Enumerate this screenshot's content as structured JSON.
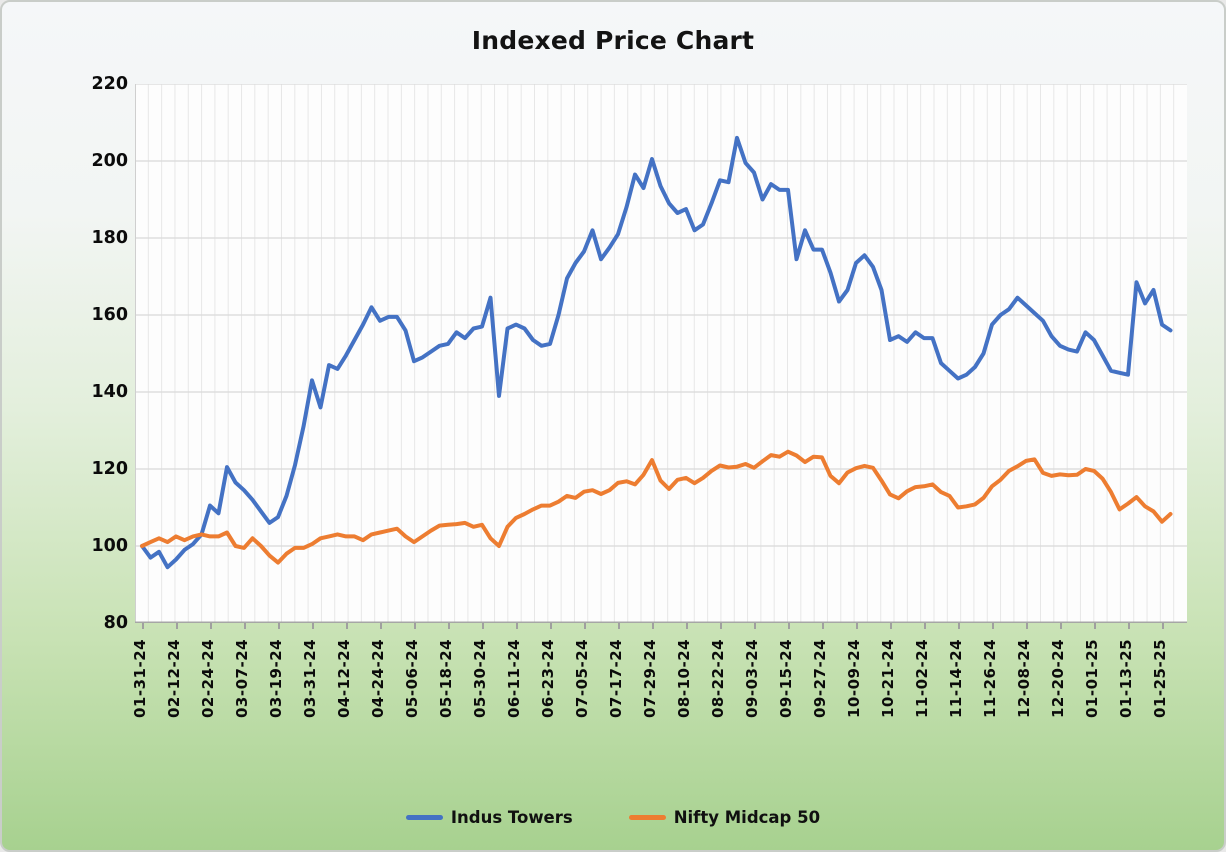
{
  "title": "Indexed Price Chart",
  "colors": {
    "series_blue": "#4472C4",
    "series_orange": "#ED7D31",
    "plot_background": "#fdfdfd",
    "h_gridline": "#d9d9d9",
    "v_gridline": "#e7e7e7",
    "axis_line": "#a6a6a6",
    "page_gradient_top": "#f5f7f9",
    "page_gradient_bottom": "#a7d18f"
  },
  "chart_data": {
    "type": "line",
    "title": "Indexed Price Chart",
    "xlabel": "",
    "ylabel": "",
    "ylim": [
      80,
      220
    ],
    "y_ticks": [
      80,
      100,
      120,
      140,
      160,
      180,
      200,
      220
    ],
    "grid": "both",
    "legend_position": "bottom",
    "x_tick_labels": [
      "01-31-24",
      "02-12-24",
      "02-24-24",
      "03-07-24",
      "03-19-24",
      "03-31-24",
      "04-12-24",
      "04-24-24",
      "05-06-24",
      "05-18-24",
      "05-30-24",
      "06-11-24",
      "06-23-24",
      "07-05-24",
      "07-17-24",
      "07-29-24",
      "08-10-24",
      "08-22-24",
      "09-03-24",
      "09-15-24",
      "09-27-24",
      "10-09-24",
      "10-21-24",
      "11-02-24",
      "11-14-24",
      "11-26-24",
      "12-08-24",
      "12-20-24",
      "01-01-25",
      "01-13-25",
      "01-25-25"
    ],
    "points_per_tick_interval": 4,
    "series": [
      {
        "name": "Indus Towers",
        "color": "#4472C4",
        "values": [
          100,
          97,
          98.5,
          94.5,
          96.5,
          99,
          100.5,
          103,
          110.5,
          108.5,
          120.5,
          116.5,
          114.5,
          112,
          109,
          106,
          107.5,
          113,
          121,
          131,
          143,
          136,
          147,
          146,
          149.5,
          153.5,
          157.5,
          162,
          158.5,
          159.5,
          159.5,
          156,
          148,
          149,
          150.5,
          152,
          152.5,
          155.5,
          154,
          156.5,
          157,
          164.5,
          139,
          156.5,
          157.5,
          156.5,
          153.5,
          152,
          152.5,
          160,
          169.5,
          173.5,
          176.5,
          182,
          174.5,
          177.5,
          181,
          188,
          196.5,
          193,
          200.5,
          193.5,
          189,
          186.5,
          187.5,
          182,
          183.5,
          189,
          195,
          194.5,
          206,
          199.5,
          197,
          190,
          194,
          192.5,
          192.5,
          174.5,
          182,
          177,
          177,
          171,
          163.5,
          166.5,
          173.5,
          175.5,
          172.5,
          166.5,
          153.5,
          154.5,
          153,
          155.5,
          154,
          154,
          147.5,
          145.5,
          143.5,
          144.5,
          146.5,
          150,
          157.5,
          160,
          161.5,
          164.5,
          162.5,
          160.5,
          158.5,
          154.5,
          152,
          151,
          150.5,
          155.5,
          153.5,
          149.5,
          145.5,
          145,
          144.5,
          168.5,
          163,
          166.5,
          157.5,
          156
        ]
      },
      {
        "name": "Nifty Midcap 50",
        "color": "#ED7D31",
        "values": [
          100,
          101,
          102,
          101,
          102.5,
          101.5,
          102.5,
          103,
          102.5,
          102.5,
          103.5,
          100,
          99.5,
          102,
          100,
          97.5,
          95.7,
          98,
          99.5,
          99.5,
          100.5,
          102,
          102.5,
          103,
          102.5,
          102.5,
          101.5,
          103,
          103.5,
          104,
          104.5,
          102.5,
          101,
          102.5,
          104,
          105.3,
          105.5,
          105.7,
          106,
          105,
          105.5,
          102,
          100,
          105,
          107.3,
          108.3,
          109.5,
          110.5,
          110.5,
          111.5,
          113,
          112.5,
          114.1,
          114.5,
          113.5,
          114.5,
          116.4,
          116.8,
          116,
          118.5,
          122.3,
          117,
          114.8,
          117.2,
          117.7,
          116.3,
          117.7,
          119.5,
          120.9,
          120.4,
          120.6,
          121.3,
          120.3,
          122,
          123.6,
          123.2,
          124.5,
          123.5,
          121.8,
          123.2,
          123,
          118.2,
          116.3,
          119.1,
          120.2,
          120.8,
          120.3,
          117,
          113.4,
          112.4,
          114.2,
          115.3,
          115.5,
          116,
          114,
          113,
          110,
          110.3,
          110.8,
          112.5,
          115.5,
          117.2,
          119.5,
          120.7,
          122.1,
          122.5,
          119,
          118.2,
          118.6,
          118.4,
          118.5,
          120,
          119.5,
          117.5,
          114,
          109.5,
          111,
          112.7,
          110.3,
          109,
          106.3,
          108.3
        ]
      }
    ]
  },
  "legend": {
    "items": [
      {
        "label": "Indus Towers"
      },
      {
        "label": "Nifty Midcap 50"
      }
    ]
  }
}
